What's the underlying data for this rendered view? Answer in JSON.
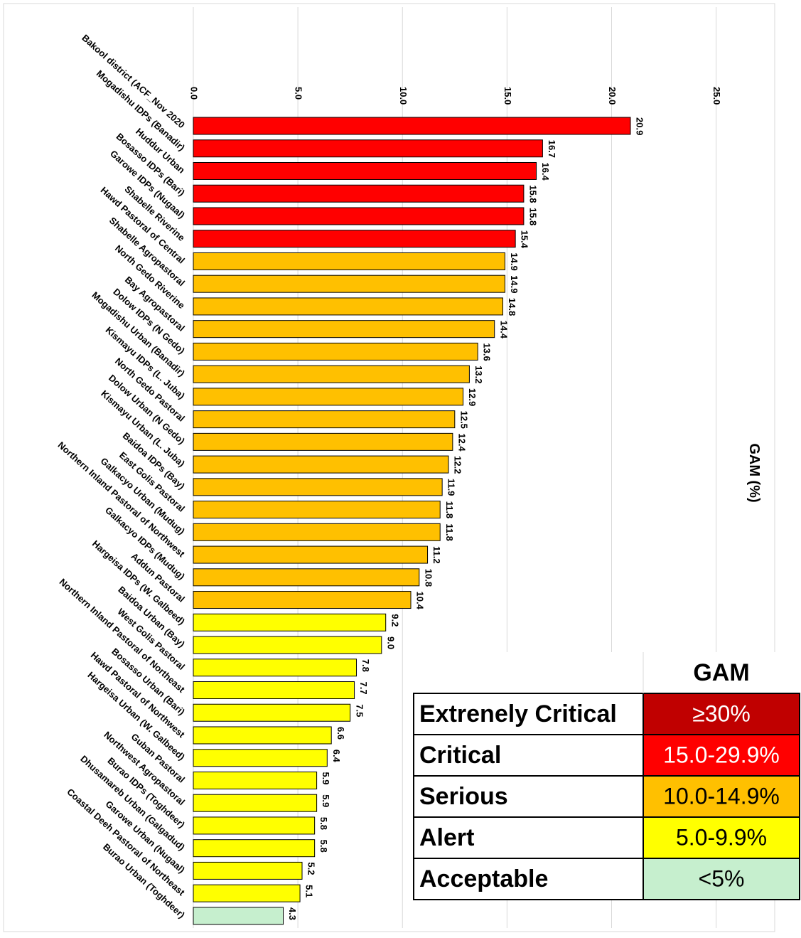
{
  "chart_data": {
    "type": "bar",
    "orientation": "horizontal",
    "axis_label": "GAM (%)",
    "categories": [
      "Bakool district (ACF_Nov 2020",
      "Mogadishu IDPs (Banadir)",
      "Huddur Urban",
      "Bosasso IDPs (Bari)",
      "Garowe IDPs (Nugaal)",
      "Shabelle Riverine",
      "Hawd Pastoral of Central",
      "Shabelle Agropastoral",
      "North Gedo Riverine",
      "Bay Agropastoral",
      "Dolow IDPs (N Gedo)",
      "Mogadishu Urban (Banadir)",
      "Kismayu IDPs (L. Juba)",
      "North Gedo Pastoral",
      "Dolow Urban (N Gedo)",
      "Kismayu Urban (L. Juba)",
      "Baidoa IDPs (Bay)",
      "East Golis Pastoral",
      "Galkacyo Urban (Mudug)",
      "Northern Inland Pastoral of Northwest",
      "Galkacyo IDPs (Mudug)",
      "Addun Pastoral",
      "Hargeisa IDPs (W. Galbeed)",
      "Baidoa Urban (Bay)",
      "West Golis Pastoral",
      "Northern Inland Pastoral of Northeast",
      "Bosasso Urban (Bari)",
      "Hawd Pastoral of Northwest",
      "Hargeisa Urban (W. Galbeed)",
      "Guban Pastoral",
      "Northwest Agropastoral",
      "Burao IDPs (Toghdeer)",
      "Dhusamareb Urban (Galgadud)",
      "Garowe Urban (Nugaal)",
      "Coastal Deeh Pastoral of Northeast",
      "Burao Urban (Toghdeer)"
    ],
    "values": [
      20.9,
      16.7,
      16.4,
      15.8,
      15.8,
      15.4,
      14.9,
      14.9,
      14.8,
      14.4,
      13.6,
      13.2,
      12.9,
      12.5,
      12.4,
      12.2,
      11.9,
      11.8,
      11.8,
      11.2,
      10.8,
      10.4,
      9.2,
      9.0,
      7.8,
      7.7,
      7.5,
      6.6,
      6.4,
      5.9,
      5.9,
      5.8,
      5.8,
      5.2,
      5.1,
      4.3
    ],
    "value_labels": [
      "20.9",
      "16.7",
      "16.4",
      "15.8",
      "15.8",
      "15.4",
      "14.9",
      "14.9",
      "14.8",
      "14.4",
      "13.6",
      "13.2",
      "12.9",
      "12.5",
      "12.4",
      "12.2",
      "11.9",
      "11.8",
      "11.8",
      "11.2",
      "10.8",
      "10.4",
      "9.2",
      "9.0",
      "7.8",
      "7.7",
      "7.5",
      "6.6",
      "6.4",
      "5.9",
      "5.9",
      "5.8",
      "5.8",
      "5.2",
      "5.1",
      "4.3"
    ],
    "colors": [
      "#ff0000",
      "#ff0000",
      "#ff0000",
      "#ff0000",
      "#ff0000",
      "#ff0000",
      "#ffc000",
      "#ffc000",
      "#ffc000",
      "#ffc000",
      "#ffc000",
      "#ffc000",
      "#ffc000",
      "#ffc000",
      "#ffc000",
      "#ffc000",
      "#ffc000",
      "#ffc000",
      "#ffc000",
      "#ffc000",
      "#ffc000",
      "#ffc000",
      "#ffff00",
      "#ffff00",
      "#ffff00",
      "#ffff00",
      "#ffff00",
      "#ffff00",
      "#ffff00",
      "#ffff00",
      "#ffff00",
      "#ffff00",
      "#ffff00",
      "#ffff00",
      "#ffff00",
      "#c6efce"
    ],
    "xlim": [
      0,
      27.8
    ],
    "xticks": [
      {
        "value": 0,
        "label": "0.0"
      },
      {
        "value": 5,
        "label": "5.0"
      },
      {
        "value": 10,
        "label": "10.0"
      },
      {
        "value": 15,
        "label": "15.0"
      },
      {
        "value": 20,
        "label": "20.0"
      },
      {
        "value": 25,
        "label": "25.0"
      }
    ],
    "grid": true
  },
  "legend_table": {
    "header": "GAM",
    "rows": [
      {
        "label": "Extrenely Critical",
        "range": "≥30%",
        "color": "#c00000",
        "text_color": "#ffffff"
      },
      {
        "label": "Critical",
        "range": "15.0-29.9%",
        "color": "#ff0000",
        "text_color": "#ffffff"
      },
      {
        "label": "Serious",
        "range": "10.0-14.9%",
        "color": "#ffc000",
        "text_color": "#000000"
      },
      {
        "label": "Alert",
        "range": "5.0-9.9%",
        "color": "#ffff00",
        "text_color": "#000000"
      },
      {
        "label": "Acceptable",
        "range": "<5%",
        "color": "#c6efce",
        "text_color": "#000000"
      }
    ]
  }
}
